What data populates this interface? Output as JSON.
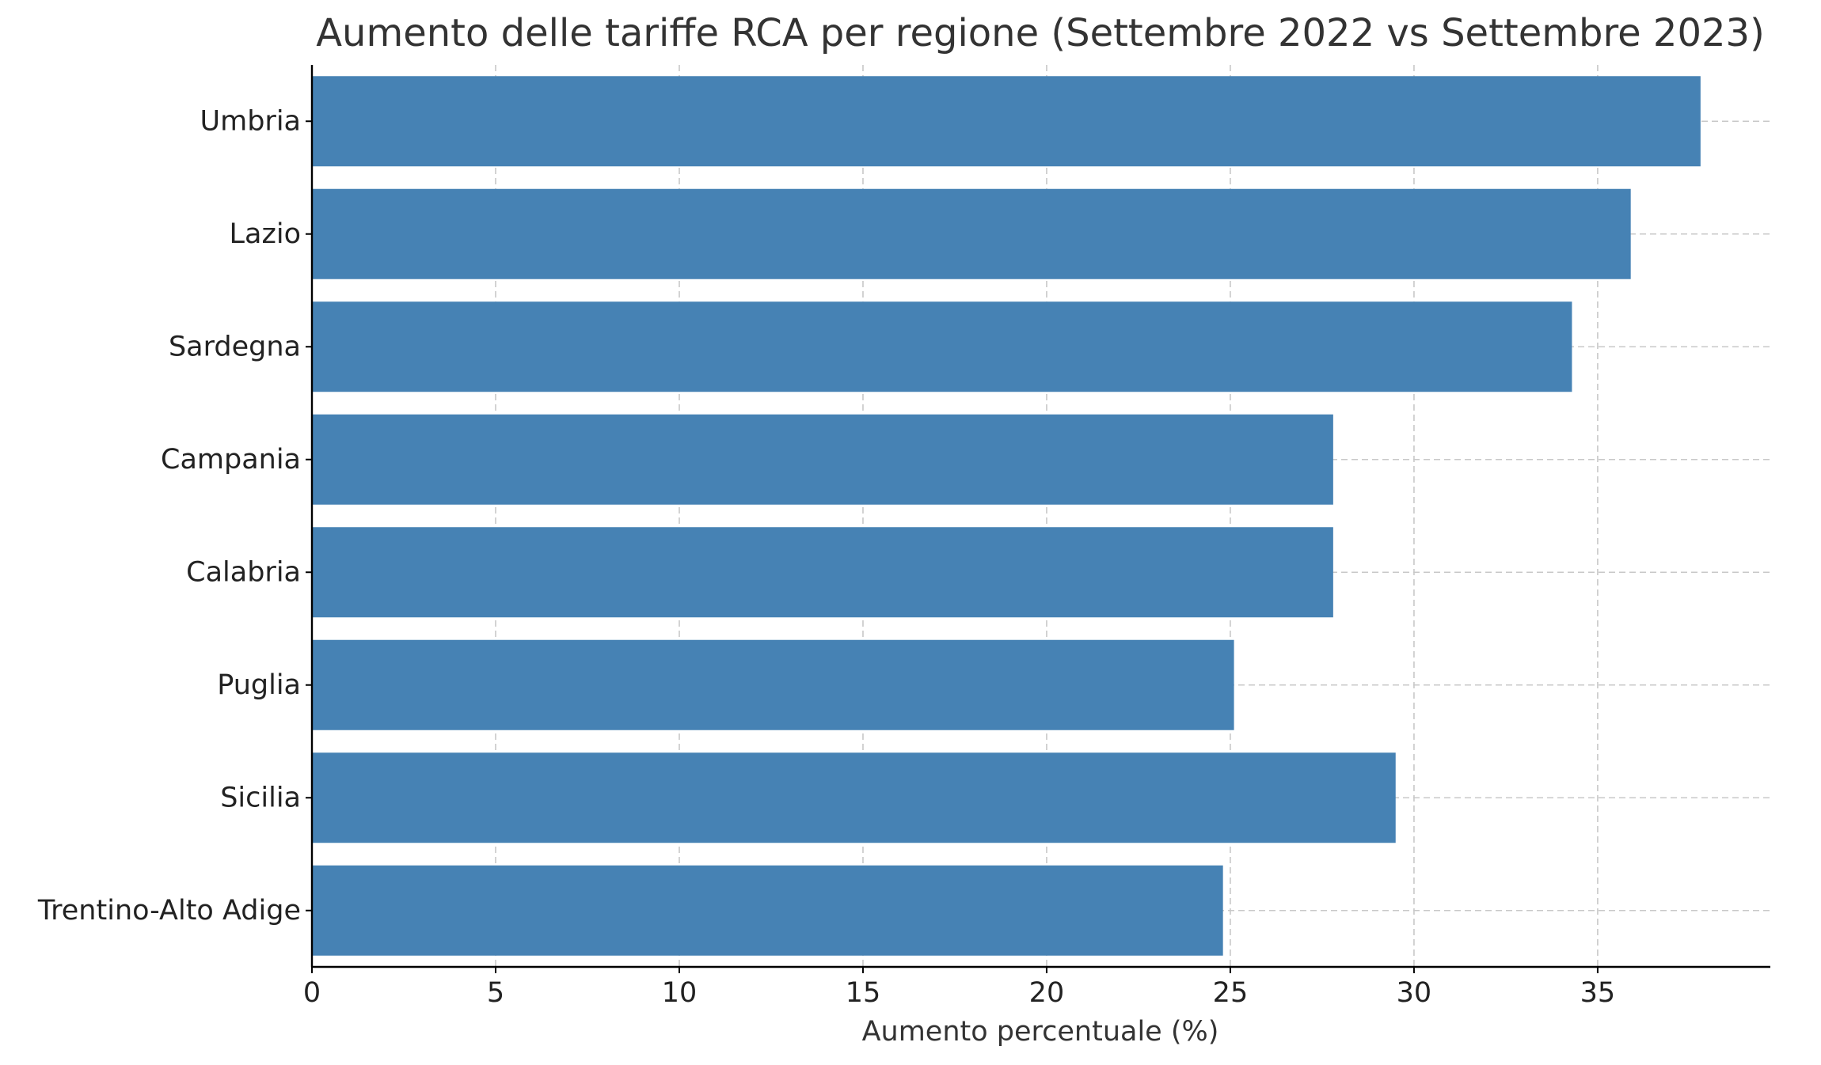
{
  "chart_data": {
    "type": "bar",
    "orientation": "horizontal",
    "title": "Aumento delle tariffe RCA per regione (Settembre 2022 vs Settembre 2023)",
    "xlabel": "Aumento percentuale (%)",
    "ylabel": "",
    "categories": [
      "Umbria",
      "Lazio",
      "Sardegna",
      "Campania",
      "Calabria",
      "Puglia",
      "Sicilia",
      "Trentino-Alto Adige"
    ],
    "values": [
      37.8,
      35.9,
      34.3,
      27.8,
      27.8,
      25.1,
      29.5,
      24.8
    ],
    "xlim": [
      0,
      39.7
    ],
    "xticks": [
      0,
      5,
      10,
      15,
      20,
      25,
      30,
      35
    ],
    "grid": true,
    "bar_color": "#4682b4"
  }
}
